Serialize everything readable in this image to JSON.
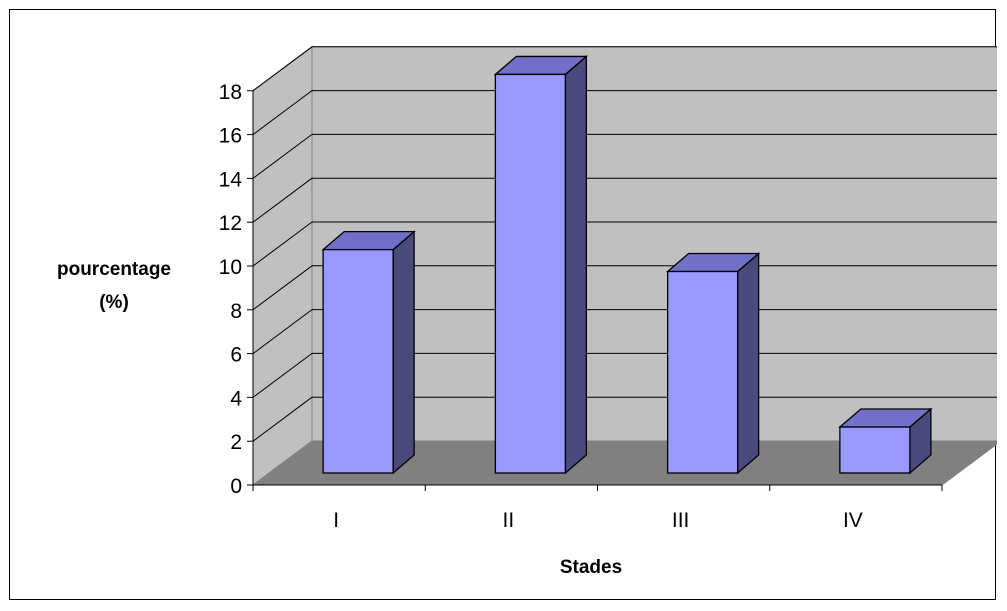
{
  "chart_data": {
    "type": "bar",
    "style": "3d-column",
    "categories": [
      "I",
      "II",
      "III",
      "IV"
    ],
    "values": [
      10.2,
      18.2,
      9.2,
      2.1
    ],
    "title": "",
    "xlabel": "Stades",
    "ylabel_lines": [
      "pourcentage",
      "(%)"
    ],
    "ylim": [
      0,
      18
    ],
    "yticks": [
      0,
      2,
      4,
      6,
      8,
      10,
      12,
      14,
      16,
      18
    ],
    "grid": true,
    "legend": "none",
    "colors": {
      "bar_front": "#9999ff",
      "bar_side": "#4a4a7c",
      "bar_top": "#7070c8",
      "back_wall": "#c0c0c0",
      "side_wall": "#c0c0c0",
      "floor": "#808080",
      "gridline": "#000000"
    }
  }
}
